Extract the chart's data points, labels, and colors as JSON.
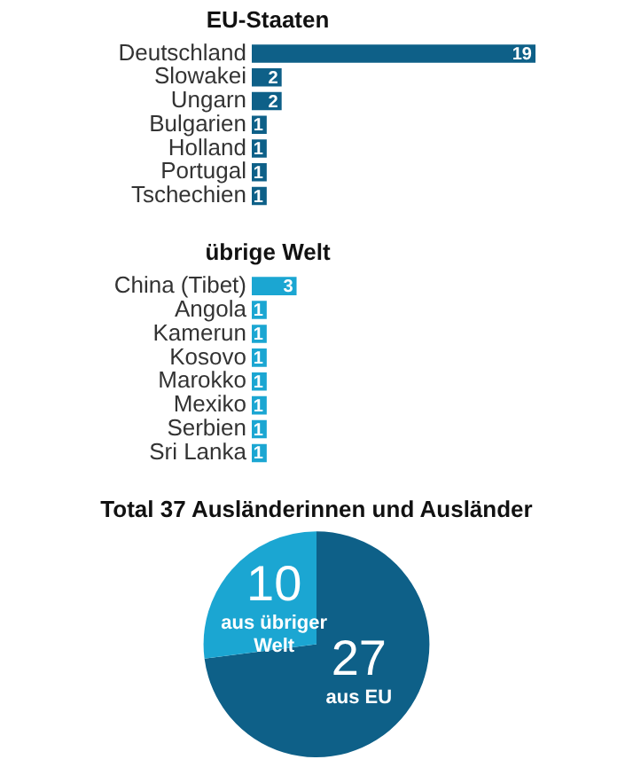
{
  "chart_data": [
    {
      "type": "bar",
      "orientation": "horizontal",
      "title": "EU-Staaten",
      "categories": [
        "Deutschland",
        "Slowakei",
        "Ungarn",
        "Bulgarien",
        "Holland",
        "Portugal",
        "Tschechien"
      ],
      "values": [
        19,
        2,
        2,
        1,
        1,
        1,
        1
      ],
      "color": "#0e6088",
      "data_labels": true,
      "tick_labels": "y"
    },
    {
      "type": "bar",
      "orientation": "horizontal",
      "title": "übrige Welt",
      "categories": [
        "China (Tibet)",
        "Angola",
        "Kamerun",
        "Kosovo",
        "Marokko",
        "Mexiko",
        "Serbien",
        "Sri Lanka"
      ],
      "values": [
        3,
        1,
        1,
        1,
        1,
        1,
        1,
        1
      ],
      "color": "#1ba6d2",
      "data_labels": true,
      "tick_labels": "y"
    },
    {
      "type": "pie",
      "title": "Total 37 Ausländerinnen und Ausländer",
      "categories": [
        "aus EU",
        "aus übriger Welt"
      ],
      "values": [
        27,
        10
      ],
      "colors": [
        "#0e6088",
        "#1ba6d2"
      ],
      "data_labels": true
    }
  ]
}
